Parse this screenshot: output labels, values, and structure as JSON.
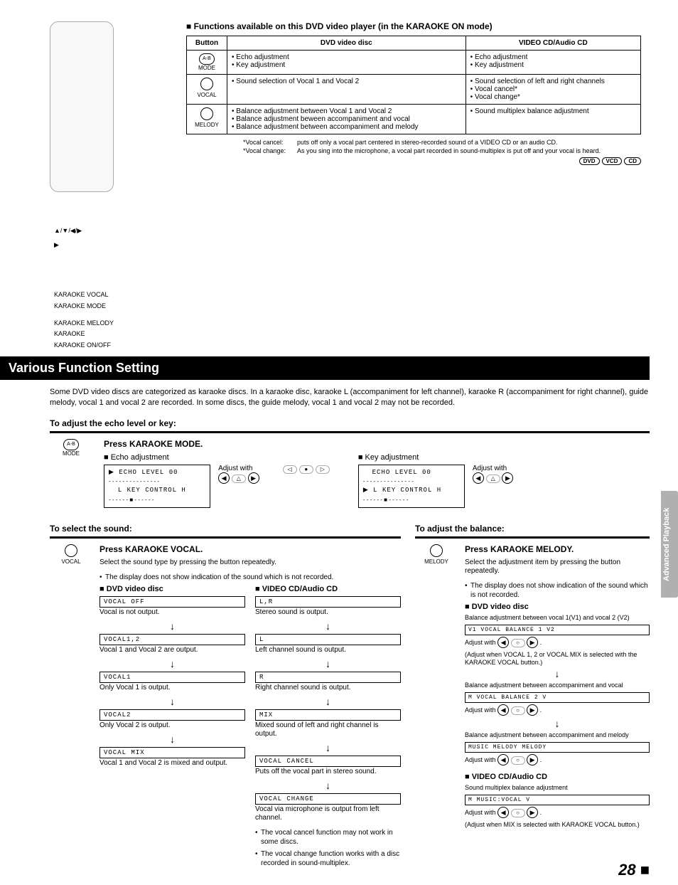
{
  "remote": {
    "arrows": "▲/▼/◀/▶",
    "play": "▶",
    "labels": [
      "KARAOKE VOCAL",
      "KARAOKE MODE",
      "KARAOKE MELODY",
      "KARAOKE",
      "KARAOKE ON/OFF"
    ]
  },
  "funcTable": {
    "title": "Functions available on this DVD video player (in the KARAOKE ON mode)",
    "headers": [
      "Button",
      "DVD video disc",
      "VIDEO CD/Audio CD"
    ],
    "rows": [
      {
        "btnText": "A-B",
        "btnSub": "MODE",
        "dvd": [
          "Echo adjustment",
          "Key adjustment"
        ],
        "cd": [
          "Echo adjustment",
          "Key adjustment"
        ]
      },
      {
        "btnText": "",
        "btnSub": "VOCAL",
        "dvd": [
          "Sound selection of Vocal 1 and Vocal 2"
        ],
        "cd": [
          "Sound selection of left and right channels",
          "Vocal cancel*",
          "Vocal change*"
        ]
      },
      {
        "btnText": "",
        "btnSub": "MELODY",
        "dvd": [
          "Balance adjustment between Vocal 1 and Vocal 2",
          "Balance adjustment beween accompaniment and vocal",
          "Balance adjustment between accompaniment and melody"
        ],
        "cd": [
          "Sound multiplex balance adjustment"
        ]
      }
    ],
    "footnotes": [
      {
        "label": "*Vocal cancel:",
        "text": "puts off only a vocal part centered in stereo-recorded sound of a VIDEO CD or an audio CD."
      },
      {
        "label": "*Vocal change:",
        "text": "As you sing into the microphone, a vocal part recorded in sound-multiplex is put off and your vocal is heard."
      }
    ],
    "badges": [
      "DVD",
      "VCD",
      "CD"
    ]
  },
  "sectionBar": "Various Function Setting",
  "intro": "Some DVD video discs are categorized as karaoke discs. In a karaoke disc, karaoke L (accompaniment for left channel), karaoke R (accompaniment for right channel), guide melody, vocal 1 and vocal 2 are recorded. In some discs, the guide melody, vocal 1 and vocal 2 may not be recorded.",
  "echo": {
    "heading": "To adjust the echo level or key:",
    "iconLabel": "MODE",
    "iconText": "A-B",
    "press": "Press KARAOKE MODE.",
    "left": {
      "title": "Echo adjustment",
      "line1": "ECHO LEVEL 00",
      "line2": "L KEY CONTROL H",
      "adjust": "Adjust with"
    },
    "right": {
      "title": "Key adjustment",
      "line1": "ECHO LEVEL 00",
      "line2": "L KEY CONTROL H",
      "adjust": "Adjust with"
    }
  },
  "sound": {
    "heading": "To select the sound:",
    "iconLabel": "VOCAL",
    "press": "Press KARAOKE VOCAL.",
    "desc": "Select the sound type by pressing the button repeatedly.",
    "note": "The display does not show indication of the sound which is not recorded.",
    "dvd": {
      "title": "DVD video disc",
      "items": [
        {
          "box": "VOCAL OFF",
          "desc": "Vocal is not output."
        },
        {
          "box": "VOCAL1,2",
          "desc": "Vocal 1 and Vocal 2 are output."
        },
        {
          "box": "VOCAL1",
          "desc": "Only Vocal 1 is output."
        },
        {
          "box": "VOCAL2",
          "desc": "Only Vocal 2 is output."
        },
        {
          "box": "VOCAL MIX",
          "desc": "Vocal 1 and Vocal 2 is mixed and output."
        }
      ]
    },
    "cd": {
      "title": "VIDEO CD/Audio CD",
      "items": [
        {
          "box": "L,R",
          "desc": "Stereo sound is output."
        },
        {
          "box": "L",
          "desc": "Left channel sound is output."
        },
        {
          "box": "R",
          "desc": "Right channel sound is output."
        },
        {
          "box": "MIX",
          "desc": "Mixed sound of left and right channel is output."
        },
        {
          "box": "VOCAL CANCEL",
          "desc": "Puts off the vocal part in stereo sound."
        },
        {
          "box": "VOCAL CHANGE",
          "desc": "Vocal via microphone is output from left channel."
        }
      ],
      "bullets": [
        "The vocal cancel function may not work in some discs.",
        "The vocal change function works with a disc recorded in sound-multiplex."
      ]
    }
  },
  "balance": {
    "heading": "To adjust the balance:",
    "iconLabel": "MELODY",
    "press": "Press KARAOKE MELODY.",
    "desc": "Select the adjustment item by pressing the button repeatedly.",
    "note": "The display does not show indication of the sound which is not recorded.",
    "dvd": {
      "title": "DVD video disc",
      "segs": [
        {
          "pre": "Balance adjustment between vocal 1(V1) and vocal 2 (V2)",
          "box": "V1 VOCAL BALANCE 1 V2",
          "adj": "Adjust with",
          "post": "(Adjust when VOCAL 1, 2 or VOCAL MIX is selected with the KARAOKE VOCAL button.)"
        },
        {
          "pre": "Balance adjustment between accompaniment and vocal",
          "box": "M  VOCAL BALANCE 2  V",
          "adj": "Adjust with",
          "post": ""
        },
        {
          "pre": "Balance adjustment between accompaniment and melody",
          "box": "MUSIC MELODY MELODY",
          "adj": "Adjust with",
          "post": ""
        }
      ]
    },
    "cd": {
      "title": "VIDEO CD/Audio CD",
      "pre": "Sound multiplex balance adjustment",
      "box": "M    MUSIC:VOCAL    V",
      "adj": "Adjust with",
      "post": "(Adjust when MIX is selected with KARAOKE VOCAL button.)"
    }
  },
  "sideTab": "Advanced Playback",
  "pageNum": "28"
}
